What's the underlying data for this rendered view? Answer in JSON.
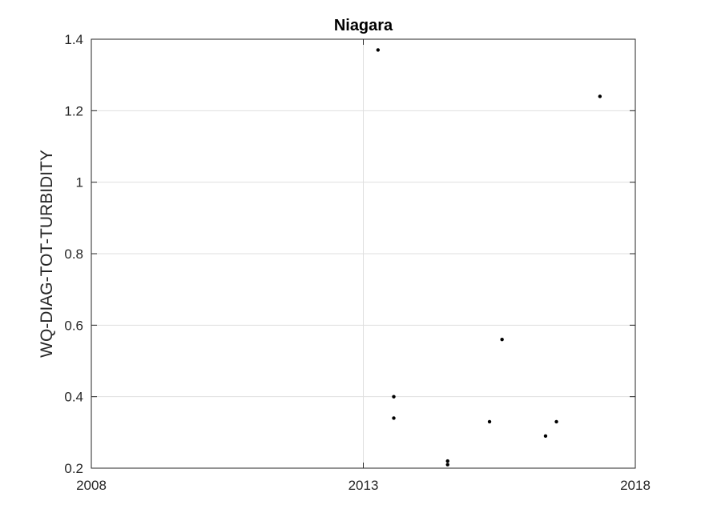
{
  "chart_data": {
    "type": "scatter",
    "title": "Niagara",
    "xlabel": "",
    "ylabel": "WQ-DIAG-TOT-TURBIDITY",
    "xlim": [
      2008,
      2018
    ],
    "ylim": [
      0.2,
      1.4
    ],
    "x_ticks": [
      "2008",
      "2013",
      "2018"
    ],
    "y_ticks": [
      "0.2",
      "0.4",
      "0.6",
      "0.8",
      "1",
      "1.2",
      "1.4"
    ],
    "grid": true,
    "marker_color": "#000000",
    "series": [
      {
        "points": [
          {
            "x": 2013.27,
            "y": 1.37
          },
          {
            "x": 2013.56,
            "y": 0.4
          },
          {
            "x": 2013.56,
            "y": 0.34
          },
          {
            "x": 2014.55,
            "y": 0.22
          },
          {
            "x": 2014.55,
            "y": 0.21
          },
          {
            "x": 2015.32,
            "y": 0.33
          },
          {
            "x": 2015.55,
            "y": 0.56
          },
          {
            "x": 2016.35,
            "y": 0.29
          },
          {
            "x": 2016.55,
            "y": 0.33
          },
          {
            "x": 2017.35,
            "y": 1.24
          }
        ]
      }
    ]
  }
}
